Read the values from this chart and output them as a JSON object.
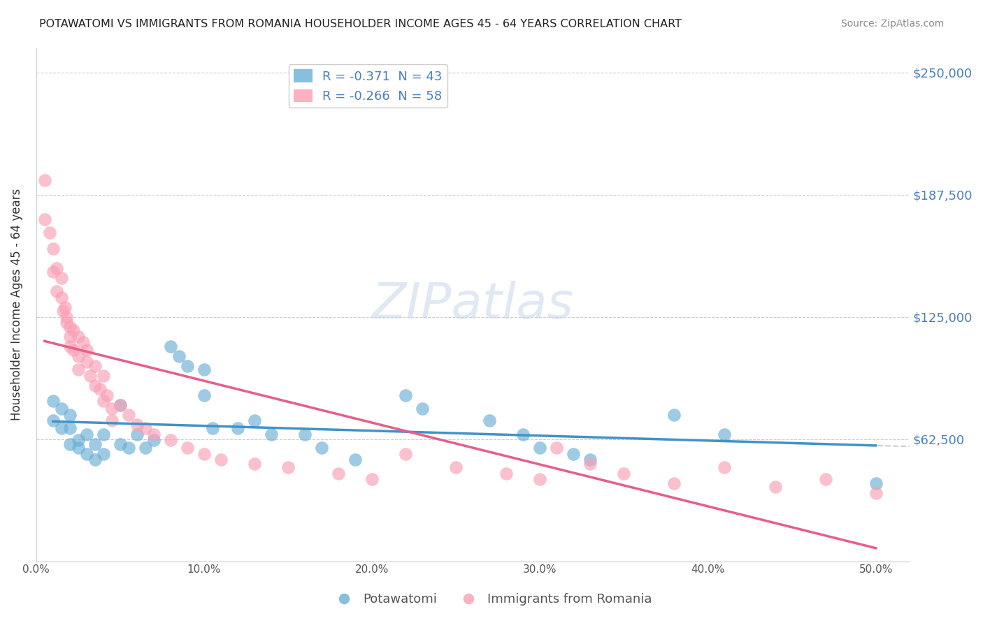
{
  "title": "POTAWATOMI VS IMMIGRANTS FROM ROMANIA HOUSEHOLDER INCOME AGES 45 - 64 YEARS CORRELATION CHART",
  "source": "Source: ZipAtlas.com",
  "ylabel": "Householder Income Ages 45 - 64 years",
  "xlabel_ticks": [
    "0.0%",
    "10.0%",
    "20.0%",
    "30.0%",
    "40.0%",
    "50.0%"
  ],
  "xlabel_vals": [
    0.0,
    0.1,
    0.2,
    0.3,
    0.4,
    0.5
  ],
  "ytick_labels": [
    "$62,500",
    "$125,000",
    "$187,500",
    "$250,000"
  ],
  "ytick_vals": [
    62500,
    125000,
    187500,
    250000
  ],
  "ylim": [
    0,
    262500
  ],
  "xlim": [
    0.0,
    0.52
  ],
  "legend_blue_r": "-0.371",
  "legend_blue_n": "43",
  "legend_pink_r": "-0.266",
  "legend_pink_n": "58",
  "legend_labels": [
    "Potawatomi",
    "Immigrants from Romania"
  ],
  "blue_color": "#6baed6",
  "pink_color": "#fa9fb5",
  "line_blue": "#4292c6",
  "line_pink": "#e85d8a",
  "watermark": "ZIPatlas",
  "blue_x": [
    0.01,
    0.01,
    0.015,
    0.015,
    0.02,
    0.02,
    0.02,
    0.025,
    0.025,
    0.03,
    0.03,
    0.035,
    0.035,
    0.04,
    0.04,
    0.05,
    0.05,
    0.055,
    0.06,
    0.065,
    0.07,
    0.08,
    0.085,
    0.09,
    0.1,
    0.1,
    0.105,
    0.12,
    0.13,
    0.14,
    0.16,
    0.17,
    0.19,
    0.22,
    0.23,
    0.27,
    0.29,
    0.3,
    0.32,
    0.33,
    0.38,
    0.41,
    0.5
  ],
  "blue_y": [
    82000,
    72000,
    68000,
    78000,
    75000,
    68000,
    60000,
    62000,
    58000,
    65000,
    55000,
    60000,
    52000,
    65000,
    55000,
    80000,
    60000,
    58000,
    65000,
    58000,
    62000,
    110000,
    105000,
    100000,
    98000,
    85000,
    68000,
    68000,
    72000,
    65000,
    65000,
    58000,
    52000,
    85000,
    78000,
    72000,
    65000,
    58000,
    55000,
    52000,
    75000,
    65000,
    40000
  ],
  "pink_x": [
    0.005,
    0.005,
    0.008,
    0.01,
    0.01,
    0.012,
    0.012,
    0.015,
    0.015,
    0.016,
    0.017,
    0.018,
    0.018,
    0.02,
    0.02,
    0.02,
    0.022,
    0.022,
    0.025,
    0.025,
    0.025,
    0.028,
    0.03,
    0.03,
    0.032,
    0.035,
    0.035,
    0.038,
    0.04,
    0.04,
    0.042,
    0.045,
    0.045,
    0.05,
    0.055,
    0.06,
    0.065,
    0.07,
    0.08,
    0.09,
    0.1,
    0.11,
    0.13,
    0.15,
    0.18,
    0.2,
    0.22,
    0.25,
    0.28,
    0.3,
    0.31,
    0.33,
    0.35,
    0.38,
    0.41,
    0.44,
    0.47,
    0.5
  ],
  "pink_y": [
    195000,
    175000,
    168000,
    160000,
    148000,
    150000,
    138000,
    145000,
    135000,
    128000,
    130000,
    125000,
    122000,
    120000,
    115000,
    110000,
    118000,
    108000,
    115000,
    105000,
    98000,
    112000,
    108000,
    102000,
    95000,
    100000,
    90000,
    88000,
    95000,
    82000,
    85000,
    78000,
    72000,
    80000,
    75000,
    70000,
    68000,
    65000,
    62000,
    58000,
    55000,
    52000,
    50000,
    48000,
    45000,
    42000,
    55000,
    48000,
    45000,
    42000,
    58000,
    50000,
    45000,
    40000,
    48000,
    38000,
    42000,
    35000
  ]
}
